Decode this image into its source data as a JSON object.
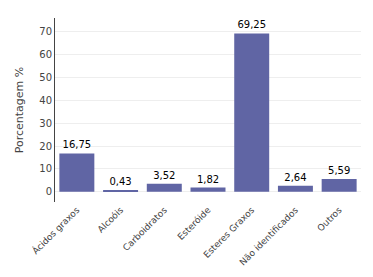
{
  "chart_data": {
    "type": "bar",
    "categories": [
      "Ácidos graxos",
      "Alcoóis",
      "Carboidratos",
      "Esteróide",
      "Esteres Graxos",
      "Não identificados",
      "Outros"
    ],
    "values": [
      16.75,
      0.43,
      3.52,
      1.82,
      69.25,
      2.64,
      5.59
    ],
    "value_labels": [
      "16,75",
      "0,43",
      "3,52",
      "1,82",
      "69,25",
      "2,64",
      "5,59"
    ],
    "data_labels": true,
    "color": "#6065a4",
    "ylabel": "Porcentagem %",
    "ylim": [
      -4.5,
      76
    ],
    "yticks": [
      0,
      10,
      20,
      30,
      40,
      50,
      60,
      70
    ],
    "grid": true
  }
}
